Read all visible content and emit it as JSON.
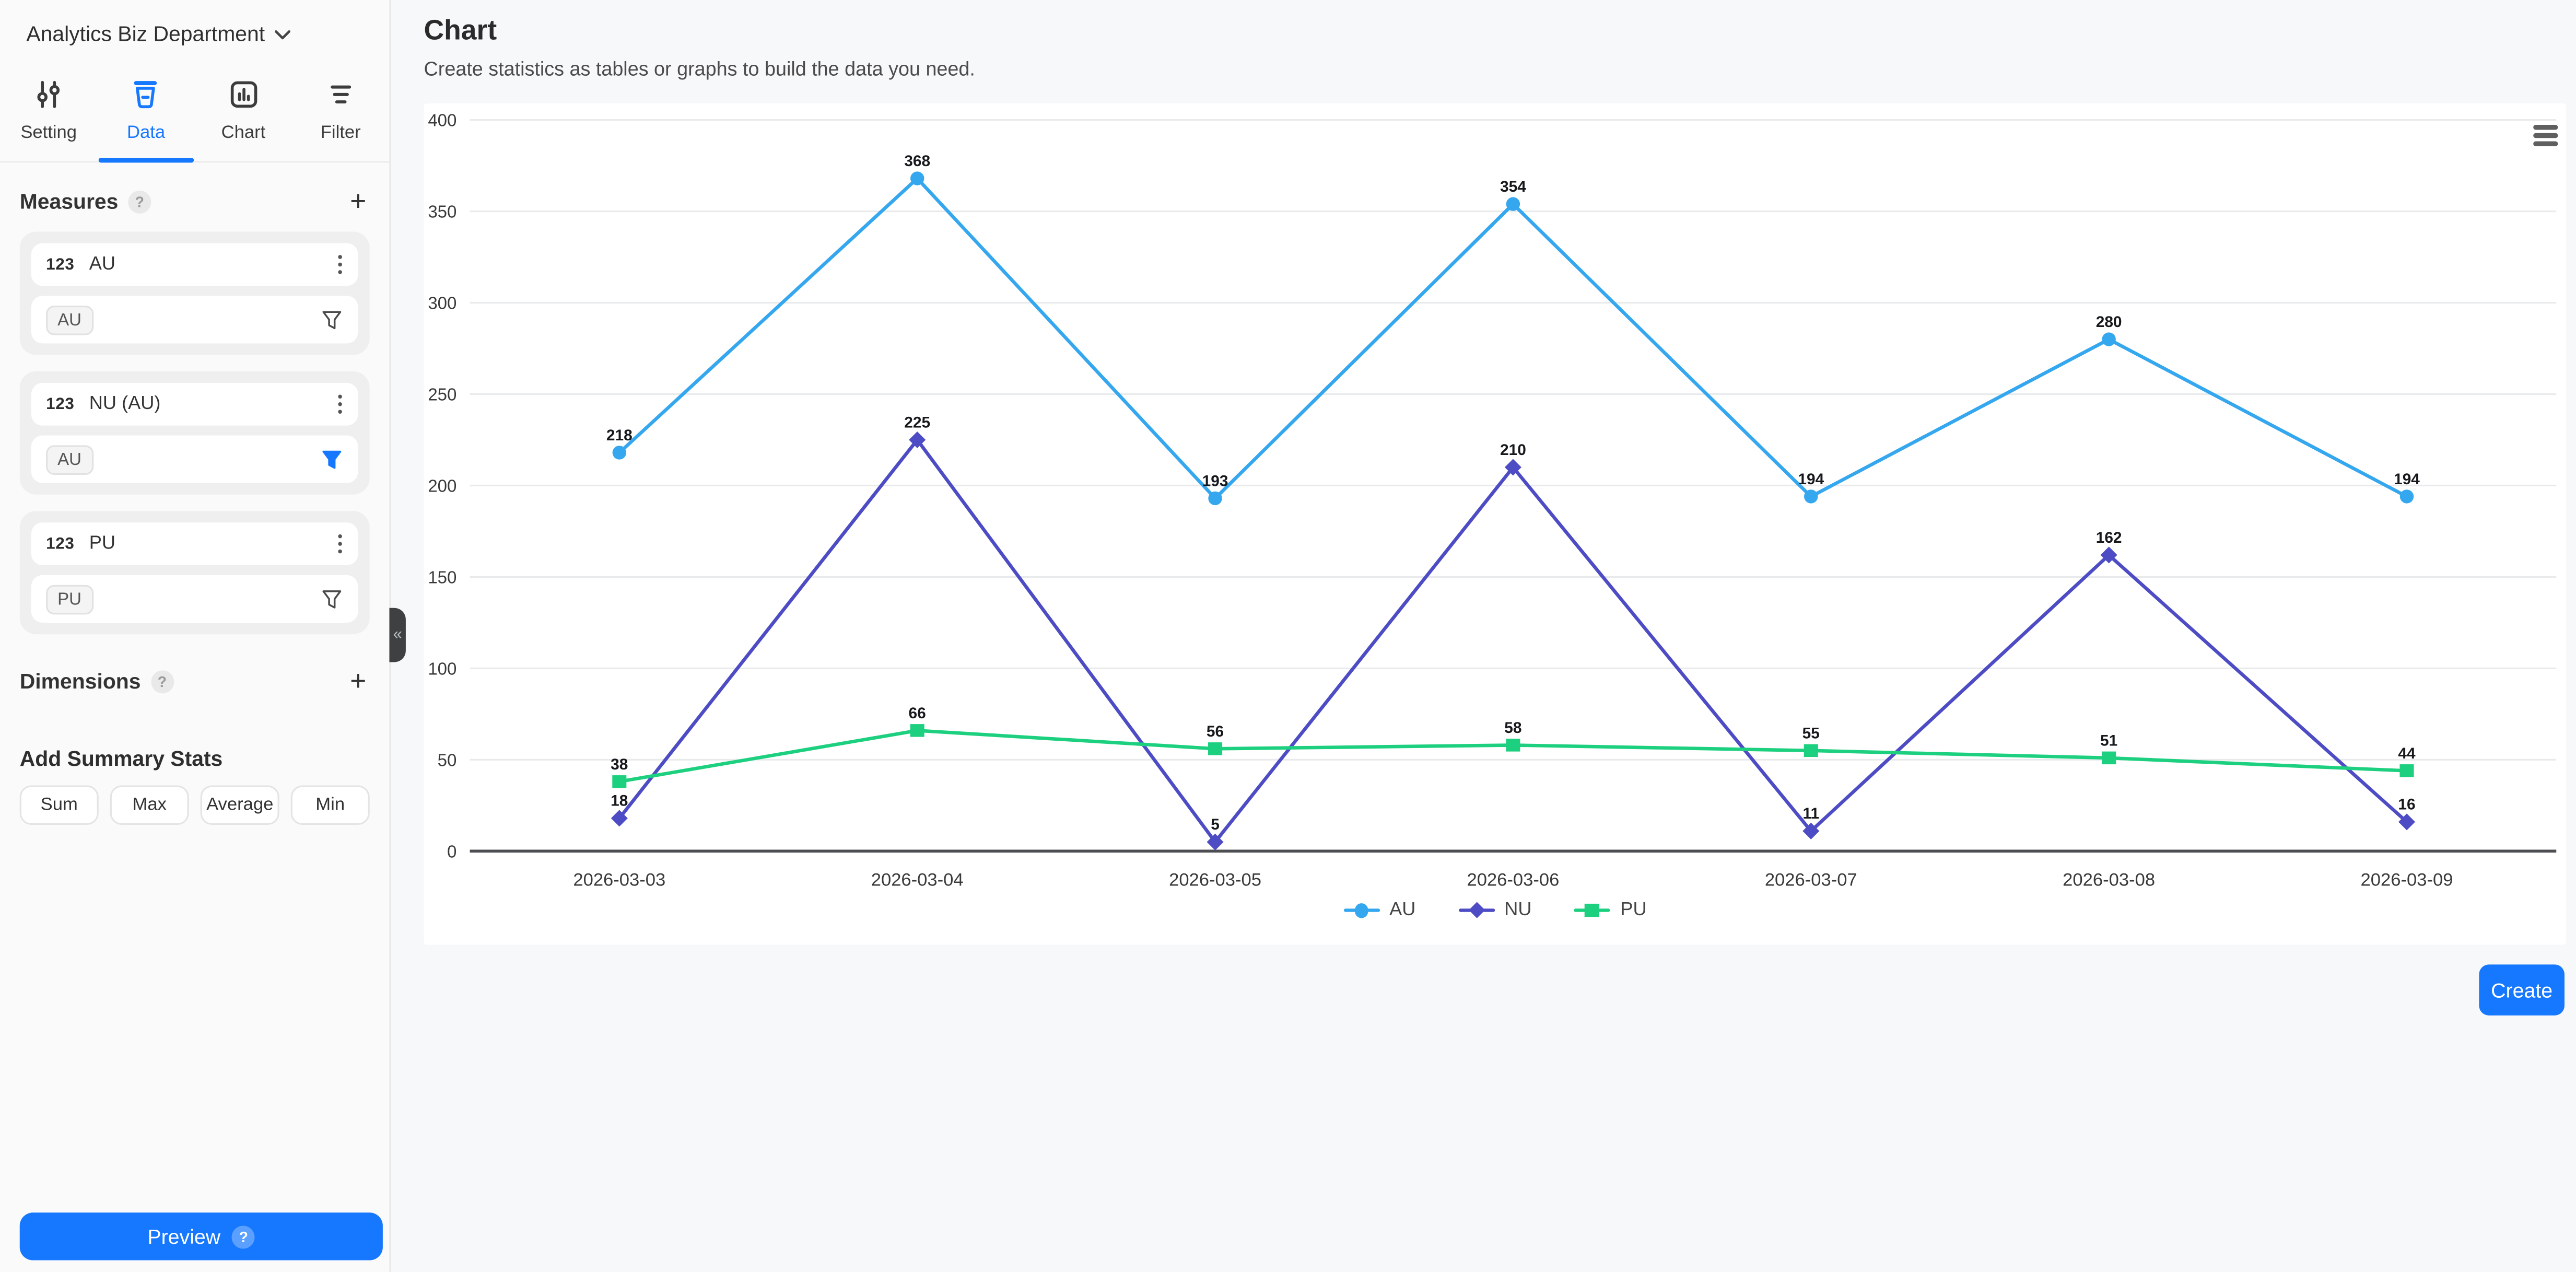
{
  "workspace": {
    "name": "Analytics Biz Department"
  },
  "accent_color": "#1677ff",
  "icons": {
    "workspace": "chevron-down-icon",
    "tab_setting": "sliders-icon",
    "tab_data": "database-icon",
    "tab_chart": "bar-chart-icon",
    "tab_filter": "filter-lines-icon",
    "measure_menu": "kebab-icon",
    "measure_filter": "funnel-icon",
    "chart_menu": "hamburger-icon",
    "collapse": "chevrons-left-icon"
  },
  "sidebar": {
    "tabs": [
      {
        "label": "Setting",
        "active": false
      },
      {
        "label": "Data",
        "active": true
      },
      {
        "label": "Chart",
        "active": false
      },
      {
        "label": "Filter",
        "active": false
      }
    ],
    "measures": {
      "title": "Measures",
      "help": "?",
      "add": "+",
      "items": [
        {
          "type_badge": "123",
          "name": "AU",
          "chip": "AU",
          "filter_active": false
        },
        {
          "type_badge": "123",
          "name": "NU (AU)",
          "chip": "AU",
          "filter_active": true
        },
        {
          "type_badge": "123",
          "name": "PU",
          "chip": "PU",
          "filter_active": false
        }
      ]
    },
    "dimensions": {
      "title": "Dimensions",
      "help": "?",
      "add": "+"
    },
    "summary": {
      "title": "Add Summary Stats",
      "options": [
        "Sum",
        "Max",
        "Average",
        "Min"
      ]
    },
    "preview": {
      "label": "Preview",
      "help": "?"
    },
    "collapse_glyph": "«"
  },
  "main": {
    "title": "Chart",
    "subtitle": "Create statistics as tables or graphs to build the data you need.",
    "create_label": "Create"
  },
  "chart_data": {
    "type": "line",
    "title": "",
    "x": [
      "2026-03-03",
      "2026-03-04",
      "2026-03-05",
      "2026-03-06",
      "2026-03-07",
      "2026-03-08",
      "2026-03-09"
    ],
    "series": [
      {
        "name": "AU",
        "color": "#35a7ef",
        "marker": "circle",
        "values": [
          218,
          368,
          193,
          354,
          194,
          280,
          194
        ]
      },
      {
        "name": "NU",
        "color": "#4e4cc4",
        "marker": "diamond",
        "values": [
          18,
          225,
          5,
          210,
          11,
          162,
          16
        ]
      },
      {
        "name": "PU",
        "color": "#1dd07f",
        "marker": "square",
        "values": [
          38,
          66,
          56,
          58,
          55,
          51,
          44
        ]
      }
    ],
    "ylim": [
      0,
      400
    ],
    "yticks": [
      0,
      50,
      100,
      150,
      200,
      250,
      300,
      350,
      400
    ],
    "grid": true,
    "data_labels": true,
    "legend_position": "bottom"
  }
}
